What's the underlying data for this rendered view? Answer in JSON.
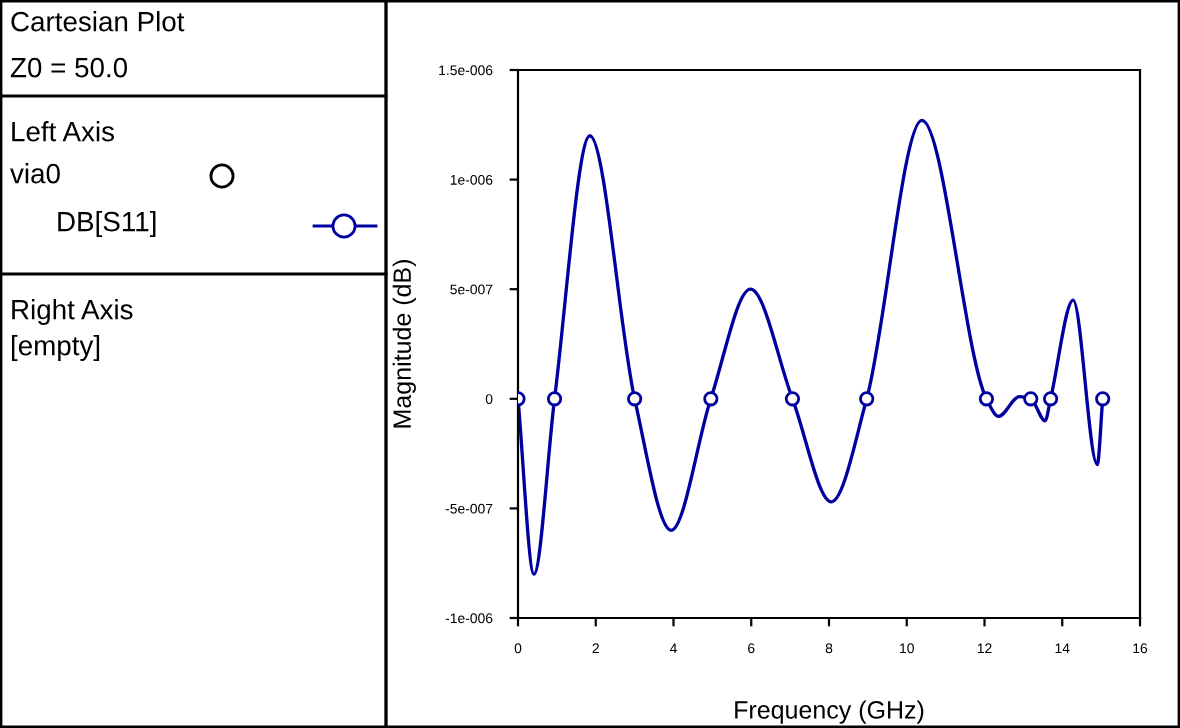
{
  "chart_data": {
    "type": "line",
    "title": "Cartesian Plot",
    "subtitle": "Z0 = 50.0",
    "xlabel": "Frequency (GHz)",
    "ylabel": "Magnitude (dB)",
    "legend_title": "via0",
    "annotations": [
      "Left Axis",
      "Right Axis",
      "[empty]"
    ],
    "legend": "left",
    "grid": false,
    "xlim": [
      0,
      16
    ],
    "xticks": [
      0,
      2,
      4,
      6,
      8,
      10,
      12,
      14,
      16
    ],
    "ylim": [
      -1e-06,
      1.5e-06
    ],
    "yticks": [
      {
        "value": -1e-06,
        "label": "-1e-006"
      },
      {
        "value": -5e-07,
        "label": "-5e-007"
      },
      {
        "value": 0,
        "label": "0"
      },
      {
        "value": 5e-07,
        "label": "5e-007"
      },
      {
        "value": 1e-06,
        "label": "1e-006"
      },
      {
        "value": 1.5e-06,
        "label": "1.5e-006"
      }
    ],
    "series": [
      {
        "name": "DB[S11]",
        "color": "#0000a0",
        "marker": "none",
        "x": [
          0,
          0.41,
          0.94,
          1.85,
          3.0,
          3.94,
          4.96,
          5.98,
          7.06,
          8.06,
          8.97,
          10.39,
          12.05,
          12.36,
          12.9,
          13.19,
          13.56,
          13.7,
          14.28,
          14.9,
          15.04
        ],
        "values": [
          0,
          -8e-07,
          0,
          1.2e-06,
          0,
          -6e-07,
          0,
          5e-07,
          0,
          -4.7e-07,
          0,
          1.27e-06,
          0,
          -8e-08,
          1e-08,
          0,
          -1e-07,
          0,
          4.5e-07,
          -3e-07,
          0
        ]
      },
      {
        "type": "scatter",
        "color": "#0000a0",
        "marker": "circle",
        "x": [
          0,
          0.94,
          3.0,
          4.96,
          7.06,
          8.97,
          12.05,
          13.19,
          13.7,
          15.04
        ],
        "values": [
          0,
          0,
          0,
          0,
          0,
          0,
          0,
          0,
          0,
          0
        ]
      }
    ]
  }
}
